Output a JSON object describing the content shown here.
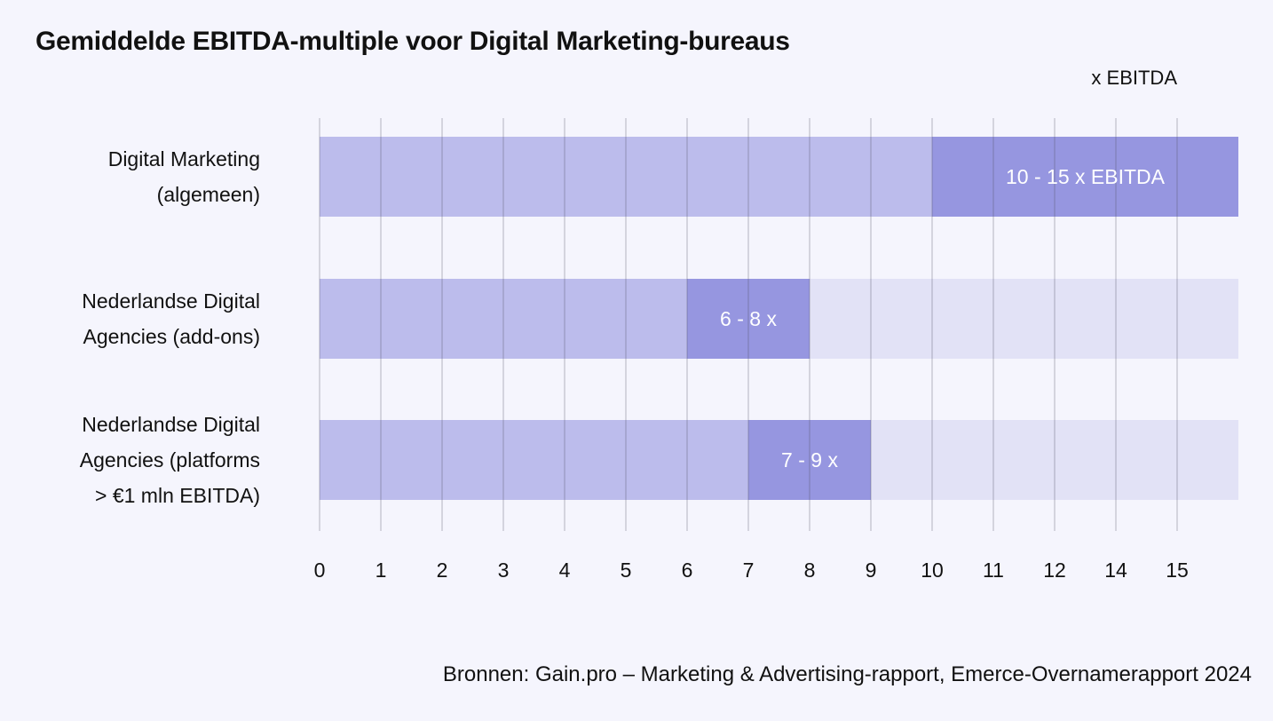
{
  "header": {
    "title": "Gemiddelde EBITDA-multiple voor Digital Marketing-bureaus",
    "unit_label": "x EBITDA"
  },
  "footer": {
    "source": "Bronnen: Gain.pro – Marketing & Advertising-rapport, Emerce-Overnamerapport 2024"
  },
  "colors": {
    "background": "#f5f5fd",
    "base_bar": "#bcbcec",
    "range_bar": "#9696e0",
    "track": "#e2e2f6",
    "gridline": "#555566",
    "text": "#111111",
    "data_label": "#ffffff"
  },
  "chart_data": {
    "type": "bar",
    "orientation": "horizontal",
    "title": "Gemiddelde EBITDA-multiple voor Digital Marketing-bureaus",
    "xlabel": "x EBITDA",
    "ylabel": "",
    "xticks": [
      "0",
      "1",
      "2",
      "3",
      "4",
      "5",
      "6",
      "7",
      "8",
      "9",
      "10",
      "11",
      "12",
      "14",
      "15"
    ],
    "xlim": [
      0,
      15
    ],
    "grid": true,
    "categories": [
      [
        "Digital Marketing",
        "(algemeen)"
      ],
      [
        "Nederlandse Digital",
        "Agencies (add-ons)"
      ],
      [
        "Nederlandse Digital",
        "Agencies (platforms",
        "> €1 mln EBITDA)"
      ]
    ],
    "ranges": [
      {
        "low": 10,
        "high": 15,
        "label": "10 - 15 x EBITDA"
      },
      {
        "low": 6,
        "high": 8,
        "label": "6 - 8 x"
      },
      {
        "low": 7,
        "high": 9,
        "label": "7 - 9 x"
      }
    ]
  }
}
